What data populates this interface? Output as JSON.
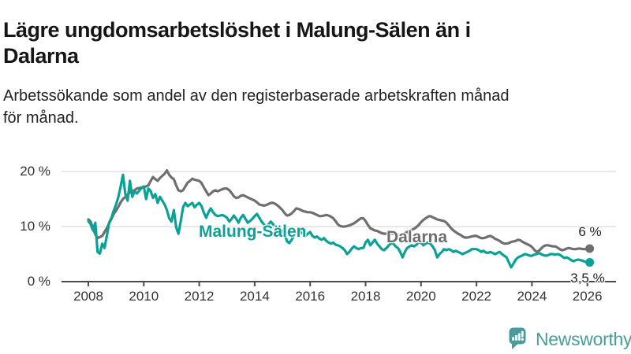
{
  "header": {
    "title_lines": [
      "Lägre ungdomsarbetslöshet i Malung-Sälen än i",
      "Dalarna"
    ],
    "subtitle_lines": [
      "Arbetssökande som andel av den registerbaserade arbetskraften månad",
      "för månad."
    ]
  },
  "colors": {
    "malung_salen": "#0aa296",
    "dalarna": "#6f6f6f",
    "axis": "#4b4b4b",
    "grid": "#dbdbdb",
    "tick_text": "#333333",
    "logo_teal": "#4a9b9c"
  },
  "chart_data": {
    "type": "line",
    "title": "Lägre ungdomsarbetslöshet i Malung-Sälen än i Dalarna",
    "subtitle": "Arbetssökande som andel av den registerbaserade arbetskraften månad för månad.",
    "frequency": "monthly",
    "x_start": "2008-01",
    "x_end": "2026-02",
    "xlabel": "",
    "ylabel": "",
    "ylim": [
      0,
      22
    ],
    "grid": "horizontal",
    "legend": "inline-labels",
    "yticks": [
      {
        "value": 0,
        "label": "0 %"
      },
      {
        "value": 10,
        "label": "10 %"
      },
      {
        "value": 20,
        "label": "20 %"
      }
    ],
    "xticks": [
      {
        "value": 2008,
        "label": "2008"
      },
      {
        "value": 2010,
        "label": "2010"
      },
      {
        "value": 2012,
        "label": "2012"
      },
      {
        "value": 2014,
        "label": "2014"
      },
      {
        "value": 2016,
        "label": "2016"
      },
      {
        "value": 2018,
        "label": "2018"
      },
      {
        "value": 2020,
        "label": "2020"
      },
      {
        "value": 2022,
        "label": "2022"
      },
      {
        "value": 2024,
        "label": "2024"
      },
      {
        "value": 2026,
        "label": "2026"
      }
    ],
    "series": [
      {
        "name": "Dalarna",
        "color": "#6f6f6f",
        "end_label": "6 %",
        "end_value": 6.0,
        "values": [
          11.3,
          10.9,
          9.7,
          8.6,
          7.9,
          8.1,
          8.3,
          9.0,
          9.7,
          10.6,
          11.4,
          12.3,
          12.9,
          13.6,
          14.4,
          15.0,
          15.4,
          15.8,
          16.2,
          16.4,
          16.6,
          16.9,
          17.0,
          17.1,
          17.1,
          17.3,
          17.5,
          18.3,
          19.0,
          18.6,
          18.3,
          18.8,
          19.2,
          19.6,
          20.2,
          19.4,
          18.9,
          18.6,
          17.5,
          16.6,
          16.4,
          16.6,
          17.3,
          18.0,
          18.3,
          18.7,
          18.5,
          18.4,
          18.3,
          17.9,
          17.1,
          16.4,
          15.7,
          16.0,
          16.4,
          16.6,
          16.4,
          16.6,
          16.8,
          16.9,
          16.9,
          16.6,
          16.1,
          15.5,
          15.2,
          15.3,
          15.6,
          15.7,
          15.5,
          15.3,
          15.1,
          14.9,
          14.7,
          14.4,
          14.0,
          13.9,
          13.8,
          13.9,
          14.1,
          14.3,
          14.3,
          14.1,
          13.8,
          13.4,
          13.0,
          12.4,
          12.0,
          12.1,
          12.4,
          12.8,
          13.3,
          13.2,
          13.0,
          12.8,
          12.7,
          12.6,
          12.6,
          12.5,
          12.3,
          12.1,
          11.9,
          11.9,
          12.0,
          12.1,
          12.0,
          11.8,
          11.5,
          11.0,
          10.4,
          10.1,
          10.0,
          10.0,
          10.1,
          10.2,
          10.4,
          10.6,
          10.9,
          11.2,
          11.5,
          11.5,
          11.0,
          10.3,
          9.7,
          9.5,
          9.3,
          9.2,
          9.0,
          8.8,
          8.7,
          8.7,
          8.8,
          8.8,
          8.7,
          8.6,
          8.5,
          8.5,
          8.6,
          8.8,
          9.0,
          9.2,
          9.4,
          9.6,
          9.9,
          10.3,
          10.8,
          11.2,
          11.5,
          11.8,
          11.9,
          11.7,
          11.5,
          11.3,
          11.2,
          11.1,
          11.0,
          10.7,
          10.2,
          9.7,
          9.3,
          9.0,
          8.7,
          8.5,
          8.2,
          8.0,
          8.0,
          8.1,
          8.2,
          8.3,
          8.3,
          8.1,
          7.9,
          7.9,
          8.0,
          8.2,
          8.3,
          8.1,
          7.8,
          7.6,
          7.4,
          7.1,
          6.9,
          6.9,
          7.0,
          7.2,
          7.3,
          7.4,
          7.6,
          7.5,
          7.2,
          7.0,
          6.8,
          6.6,
          6.3,
          5.8,
          5.4,
          5.6,
          6.0,
          6.4,
          6.6,
          6.6,
          6.5,
          6.4,
          6.4,
          6.2,
          5.9,
          5.7,
          5.8,
          6.0,
          6.1,
          6.0,
          5.9,
          5.9,
          6.0,
          6.0,
          5.9,
          5.9,
          6.0,
          6.0
        ]
      },
      {
        "name": "Malung-Sälen",
        "color": "#0aa296",
        "end_label": "3,5 %",
        "end_value": 3.5,
        "values": [
          11.0,
          10.4,
          9.3,
          10.7,
          5.4,
          5.1,
          6.9,
          6.1,
          8.3,
          10.7,
          11.6,
          12.9,
          14.0,
          15.4,
          17.3,
          19.4,
          15.9,
          14.7,
          18.3,
          15.4,
          16.4,
          16.0,
          16.5,
          17.0,
          17.3,
          15.0,
          16.9,
          16.4,
          15.2,
          15.9,
          14.3,
          15.4,
          14.7,
          14.0,
          13.0,
          11.5,
          10.9,
          13.0,
          9.9,
          8.7,
          11.0,
          13.5,
          14.3,
          13.7,
          14.0,
          14.3,
          13.5,
          14.0,
          14.3,
          13.7,
          12.5,
          11.6,
          12.6,
          13.3,
          12.6,
          12.1,
          11.9,
          12.0,
          12.1,
          11.9,
          11.6,
          10.9,
          11.4,
          12.0,
          11.4,
          10.7,
          11.6,
          12.1,
          11.4,
          10.7,
          11.0,
          11.4,
          11.9,
          12.3,
          11.6,
          10.9,
          10.4,
          10.0,
          10.4,
          10.9,
          10.4,
          10.0,
          9.7,
          9.5,
          9.3,
          8.7,
          7.3,
          7.0,
          7.6,
          8.3,
          9.0,
          8.7,
          9.0,
          8.6,
          8.3,
          8.7,
          9.0,
          8.3,
          8.0,
          8.2,
          7.8,
          7.6,
          7.9,
          7.4,
          7.1,
          6.9,
          7.1,
          6.7,
          6.6,
          6.4,
          6.1,
          5.7,
          5.0,
          5.4,
          6.0,
          6.4,
          6.1,
          5.9,
          6.1,
          6.1,
          7.1,
          7.6,
          6.6,
          7.1,
          7.6,
          6.9,
          6.4,
          5.9,
          5.7,
          6.1,
          6.6,
          6.9,
          6.9,
          6.4,
          6.1,
          5.4,
          4.4,
          5.4,
          6.1,
          6.4,
          6.6,
          6.4,
          6.7,
          7.1,
          7.1,
          6.6,
          6.9,
          7.1,
          6.9,
          6.4,
          5.7,
          4.4,
          5.0,
          5.4,
          5.9,
          5.7,
          5.9,
          5.7,
          5.4,
          5.6,
          5.4,
          5.2,
          5.0,
          5.2,
          5.4,
          5.6,
          5.9,
          5.9,
          5.9,
          5.7,
          5.4,
          5.6,
          5.3,
          5.2,
          5.4,
          5.2,
          5.0,
          5.2,
          5.4,
          5.0,
          4.7,
          4.4,
          3.5,
          2.6,
          3.3,
          4.0,
          4.4,
          4.6,
          4.8,
          5.0,
          4.9,
          4.7,
          4.7,
          4.9,
          5.0,
          5.2,
          5.0,
          4.8,
          4.7,
          4.8,
          5.0,
          5.0,
          4.9,
          5.0,
          4.9,
          4.6,
          4.3,
          4.4,
          4.2,
          3.9,
          3.7,
          3.9,
          4.0,
          3.9,
          3.8,
          3.6,
          3.5,
          3.5
        ]
      }
    ]
  },
  "logo": {
    "text": "Newsworthy",
    "icon": "newsworthy-chart-bubble-icon"
  }
}
